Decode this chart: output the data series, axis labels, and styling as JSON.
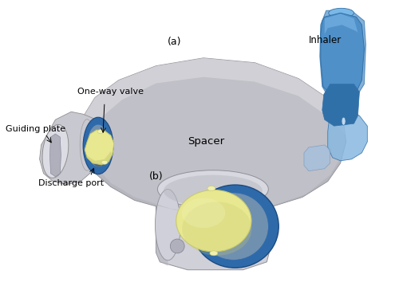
{
  "background_color": "#ffffff",
  "label_a": "(a)",
  "label_b": "(b)",
  "label_inhaler": "Inhaler",
  "label_spacer": "Spacer",
  "label_one_way_valve": "One-way valve",
  "label_guiding_plate": "Guiding plate",
  "label_discharge_port": "Discharge port",
  "fig_width": 5.0,
  "fig_height": 3.54,
  "dpi": 100,
  "colors": {
    "spacer_light": "#d8d8dc",
    "spacer_mid": "#c0c0c8",
    "spacer_dark": "#a8a8b0",
    "spacer_edge": "#909098",
    "mouth_light": "#dcdce4",
    "mouth_mid": "#c8c8d0",
    "blue_ring": "#2e6aaa",
    "blue_ring_dark": "#1a4a80",
    "blue_ring_light": "#4a8ad0",
    "yellow": "#e8e890",
    "yellow_dark": "#c8c870",
    "yellow_light": "#f0f0b0",
    "inhaler_light": "#7ab8e8",
    "inhaler_mid": "#5090c8",
    "inhaler_dark": "#3070a8",
    "text_color": "#000000"
  }
}
